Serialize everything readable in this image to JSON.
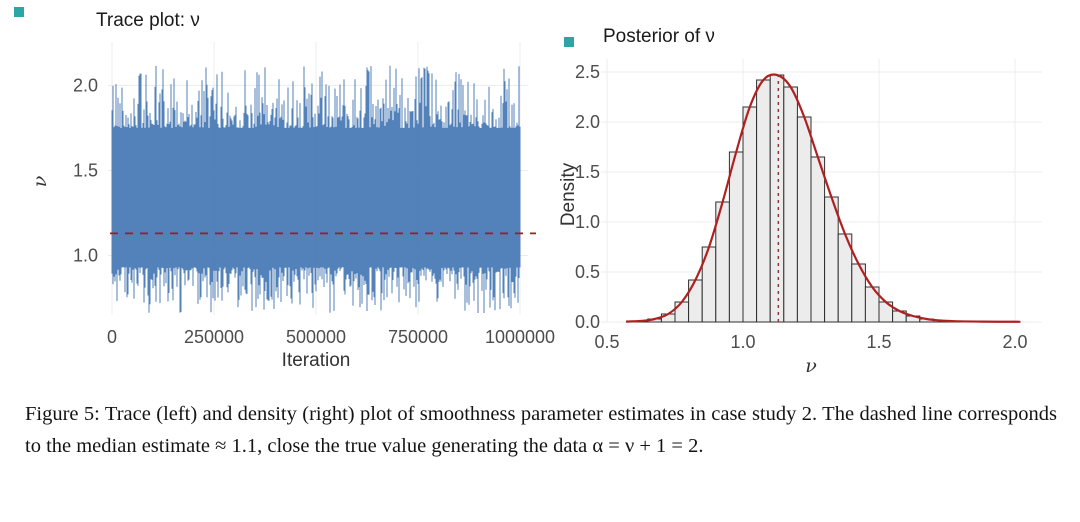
{
  "figure": {
    "caption": "Figure 5:  Trace (left) and density (right) plot of smoothness parameter estimates in case study 2.  The dashed line corresponds to the median estimate ≈ 1.1, close the true value generating the data α = ν + 1 = 2."
  },
  "markers": {
    "teal": "#2ca6a4"
  },
  "chart_data": [
    {
      "type": "line",
      "title": "Trace plot: ν",
      "xlabel": "Iteration",
      "ylabel": "ν",
      "x_ticks": [
        {
          "v": 0,
          "label": "0"
        },
        {
          "v": 250000,
          "label": "250000"
        },
        {
          "v": 500000,
          "label": "500000"
        },
        {
          "v": 750000,
          "label": "750000"
        },
        {
          "v": 1000000,
          "label": "1000000"
        }
      ],
      "y_ticks": [
        {
          "v": 1.0,
          "label": "1.0"
        },
        {
          "v": 1.5,
          "label": "1.5"
        },
        {
          "v": 2.0,
          "label": "2.0"
        }
      ],
      "xlim": [
        0,
        1000000
      ],
      "ylim": [
        0.65,
        2.22
      ],
      "band": {
        "core_low": 0.93,
        "core_high": 1.75,
        "extreme_low": 0.66,
        "extreme_high": 2.12
      },
      "median_line": 1.13,
      "description": "MCMC trace of smoothness parameter ν over 1,000,000 iterations oscillating between about 0.7 and 2.0 with dashed median line at ≈ 1.13",
      "colors": {
        "trace": "#4a7ab5",
        "median": "#9c1f1f",
        "grid": "#ececec",
        "axis_text": "#4d4d4d",
        "title": "#1a1a1a"
      }
    },
    {
      "type": "bar",
      "title": "Posterior of ν",
      "xlabel": "ν",
      "ylabel": "Density",
      "x_ticks": [
        {
          "v": 0.5,
          "label": "0.5"
        },
        {
          "v": 1.0,
          "label": "1.0"
        },
        {
          "v": 1.5,
          "label": "1.5"
        },
        {
          "v": 2.0,
          "label": "2.0"
        }
      ],
      "y_ticks": [
        {
          "v": 0.0,
          "label": "0.0"
        },
        {
          "v": 0.5,
          "label": "0.5"
        },
        {
          "v": 1.0,
          "label": "1.0"
        },
        {
          "v": 1.5,
          "label": "1.5"
        },
        {
          "v": 2.0,
          "label": "2.0"
        },
        {
          "v": 2.5,
          "label": "2.5"
        }
      ],
      "xlim": [
        0.5,
        2.1
      ],
      "ylim": [
        0,
        2.55
      ],
      "bin_start": 0.6,
      "bin_width": 0.05,
      "densities": [
        0.01,
        0.03,
        0.08,
        0.2,
        0.42,
        0.75,
        1.2,
        1.7,
        2.15,
        2.42,
        2.47,
        2.35,
        2.05,
        1.65,
        1.25,
        0.88,
        0.58,
        0.35,
        0.2,
        0.11,
        0.06,
        0.03,
        0.015,
        0.008
      ],
      "median_line": 1.13,
      "description": "Posterior density histogram of ν with kernel density curve peaking at ≈ 2.47 near ν ≈ 1.1, dashed vertical line at median ≈ 1.13",
      "colors": {
        "bar_fill": "#ececec",
        "bar_stroke": "#2f2f2f",
        "curve": "#b02020",
        "median": "#8b3a3a",
        "grid": "#ececec",
        "axis_text": "#4d4d4d",
        "title": "#1a1a1a"
      }
    }
  ]
}
